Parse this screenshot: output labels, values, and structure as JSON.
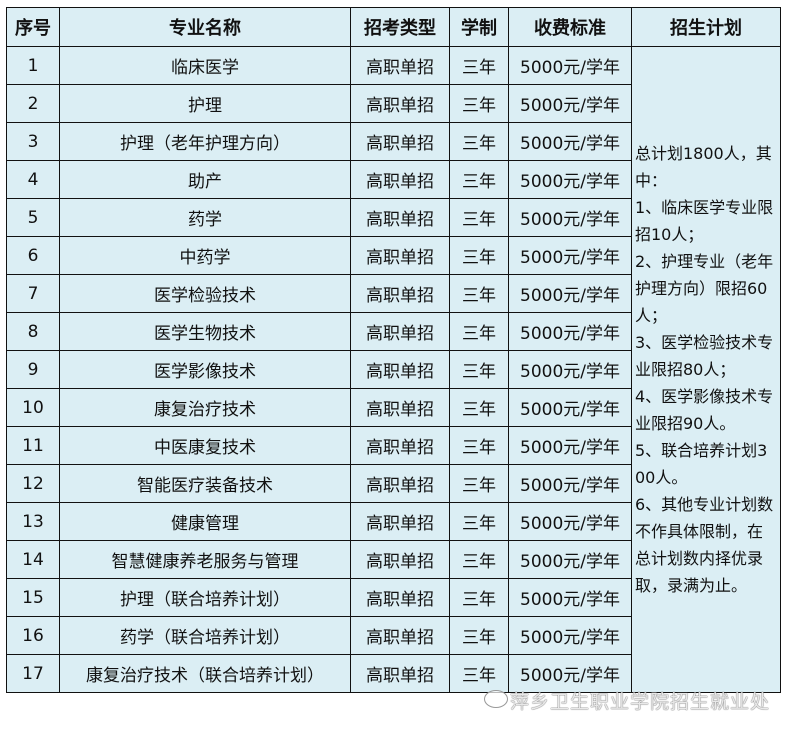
{
  "headers": [
    "序号",
    "专业名称",
    "招考类型",
    "学制",
    "收费标准",
    "招生计划"
  ],
  "rows": [
    [
      "1",
      "临床医学",
      "高职单招",
      "三年",
      "5000元/学年"
    ],
    [
      "2",
      "护理",
      "高职单招",
      "三年",
      "5000元/学年"
    ],
    [
      "3",
      "护理（老年护理方向）",
      "高职单招",
      "三年",
      "5000元/学年"
    ],
    [
      "4",
      "助产",
      "高职单招",
      "三年",
      "5000元/学年"
    ],
    [
      "5",
      "药学",
      "高职单招",
      "三年",
      "5000元/学年"
    ],
    [
      "6",
      "中药学",
      "高职单招",
      "三年",
      "5000元/学年"
    ],
    [
      "7",
      "医学检验技术",
      "高职单招",
      "三年",
      "5000元/学年"
    ],
    [
      "8",
      "医学生物技术",
      "高职单招",
      "三年",
      "5000元/学年"
    ],
    [
      "9",
      "医学影像技术",
      "高职单招",
      "三年",
      "5000元/学年"
    ],
    [
      "10",
      "康复治疗技术",
      "高职单招",
      "三年",
      "5000元/学年"
    ],
    [
      "11",
      "中医康复技术",
      "高职单招",
      "三年",
      "5000元/学年"
    ],
    [
      "12",
      "智能医疗装备技术",
      "高职单招",
      "三年",
      "5000元/学年"
    ],
    [
      "13",
      "健康管理",
      "高职单招",
      "三年",
      "5000元/学年"
    ],
    [
      "14",
      "智慧健康养老服务与管理",
      "高职单招",
      "三年",
      "5000元/学年"
    ],
    [
      "15",
      "护理（联合培养计划）",
      "高职单招",
      "三年",
      "5000元/学年"
    ],
    [
      "16",
      "药学（联合培养计划）",
      "高职单招",
      "三年",
      "5000元/学年"
    ],
    [
      "17",
      "康复治疗技术（联合培养计划）",
      "高职单招",
      "三年",
      "5000元/学年"
    ]
  ],
  "plan": "总计划1800人，其中：\n1、临床医学专业限招10人；\n2、护理专业（老年护理方向）限招60人；\n3、医学检验技术专业限招80人；\n4、医学影像技术专业限招90人。\n5、联合培养计划300人。\n6、其他专业计划数不作具体限制，在总计划数内择优录取，录满为止。",
  "watermark": "萍乡卫生职业学院招生就业处"
}
